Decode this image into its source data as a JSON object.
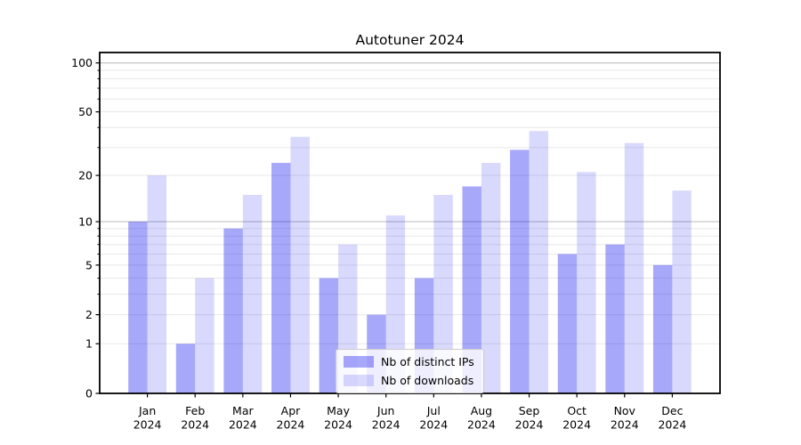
{
  "chart_data": {
    "type": "bar",
    "title": "Autotuner 2024",
    "categories": [
      "Jan",
      "Feb",
      "Mar",
      "Apr",
      "May",
      "Jun",
      "Jul",
      "Aug",
      "Sep",
      "Oct",
      "Nov",
      "Dec"
    ],
    "category_year": "2024",
    "series": [
      {
        "name": "Nb of distinct IPs",
        "color": "#0000f0",
        "opacity": 0.34,
        "values": [
          10,
          1,
          9,
          24,
          4,
          2,
          4,
          17,
          29,
          6,
          7,
          5
        ]
      },
      {
        "name": "Nb of downloads",
        "color": "#0000f0",
        "opacity": 0.15,
        "values": [
          20,
          4,
          15,
          35,
          7,
          11,
          15,
          24,
          38,
          21,
          32,
          16
        ]
      }
    ],
    "yscale": "log10(1+x)",
    "ylim": [
      0,
      116
    ],
    "yticks": [
      0,
      1,
      2,
      5,
      10,
      20,
      50,
      100
    ],
    "grid_minor": [
      1,
      2,
      3,
      4,
      5,
      6,
      7,
      8,
      9,
      20,
      30,
      40,
      50,
      60,
      70,
      80,
      90
    ],
    "grid_major": [
      10,
      100
    ],
    "grid": "horizontal",
    "legend_position": "lower center",
    "xlabel": "",
    "ylabel": ""
  },
  "colors": {
    "background": "#ffffff",
    "grid_minor": "#e8e8e8",
    "grid_major": "#c0c0c0",
    "spine": "#000000",
    "text": "#000000",
    "legend_border": "#cccccc",
    "legend_bg": "rgba(255,255,255,0.8)"
  }
}
